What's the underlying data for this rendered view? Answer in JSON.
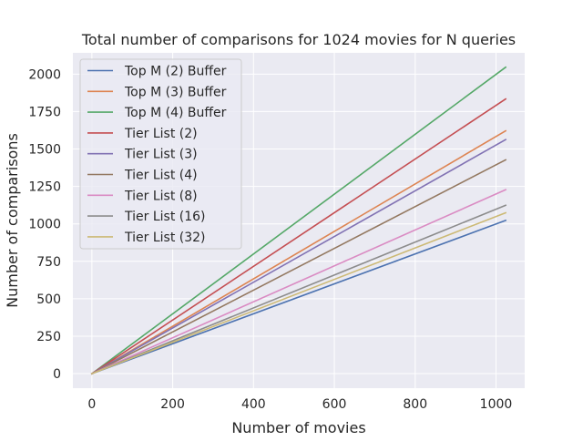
{
  "chart_data": {
    "type": "line",
    "title": "Total number of comparisons for 1024 movies for N queries",
    "xlabel": "Number of movies",
    "ylabel": "Number of comparisons",
    "xlim": [
      -47,
      1071
    ],
    "ylim": [
      -97,
      2142
    ],
    "xticks": [
      0,
      200,
      400,
      600,
      800,
      1000
    ],
    "xtick_labels": [
      "0",
      "200",
      "400",
      "600",
      "800",
      "1000"
    ],
    "yticks": [
      0,
      250,
      500,
      750,
      1000,
      1250,
      1500,
      1750,
      2000
    ],
    "ytick_labels": [
      "0",
      "250",
      "500",
      "750",
      "1000",
      "1250",
      "1500",
      "1750",
      "2000"
    ],
    "grid": true,
    "legend_position": "top-left",
    "background": "#eaeaf2",
    "grid_color": "#ffffff",
    "series": [
      {
        "name": "Top M (2) Buffer",
        "color": "#4c72b0",
        "x": [
          0,
          1024
        ],
        "y": [
          0,
          1023
        ]
      },
      {
        "name": "Top M (3) Buffer",
        "color": "#dd8452",
        "x": [
          0,
          1024
        ],
        "y": [
          0,
          1621
        ]
      },
      {
        "name": "Top M (4) Buffer",
        "color": "#55a868",
        "x": [
          0,
          1024
        ],
        "y": [
          0,
          2046
        ]
      },
      {
        "name": "Tier List (2)",
        "color": "#c44e52",
        "x": [
          0,
          1024
        ],
        "y": [
          0,
          1834
        ]
      },
      {
        "name": "Tier List (3)",
        "color": "#8172b3",
        "x": [
          0,
          1024
        ],
        "y": [
          0,
          1563
        ]
      },
      {
        "name": "Tier List (4)",
        "color": "#937860",
        "x": [
          0,
          1024
        ],
        "y": [
          0,
          1428
        ]
      },
      {
        "name": "Tier List (8)",
        "color": "#da8bc3",
        "x": [
          0,
          1024
        ],
        "y": [
          0,
          1228
        ]
      },
      {
        "name": "Tier List (16)",
        "color": "#8c8c8c",
        "x": [
          0,
          1024
        ],
        "y": [
          0,
          1124
        ]
      },
      {
        "name": "Tier List (32)",
        "color": "#ccb974",
        "x": [
          0,
          1024
        ],
        "y": [
          0,
          1074
        ]
      }
    ]
  }
}
